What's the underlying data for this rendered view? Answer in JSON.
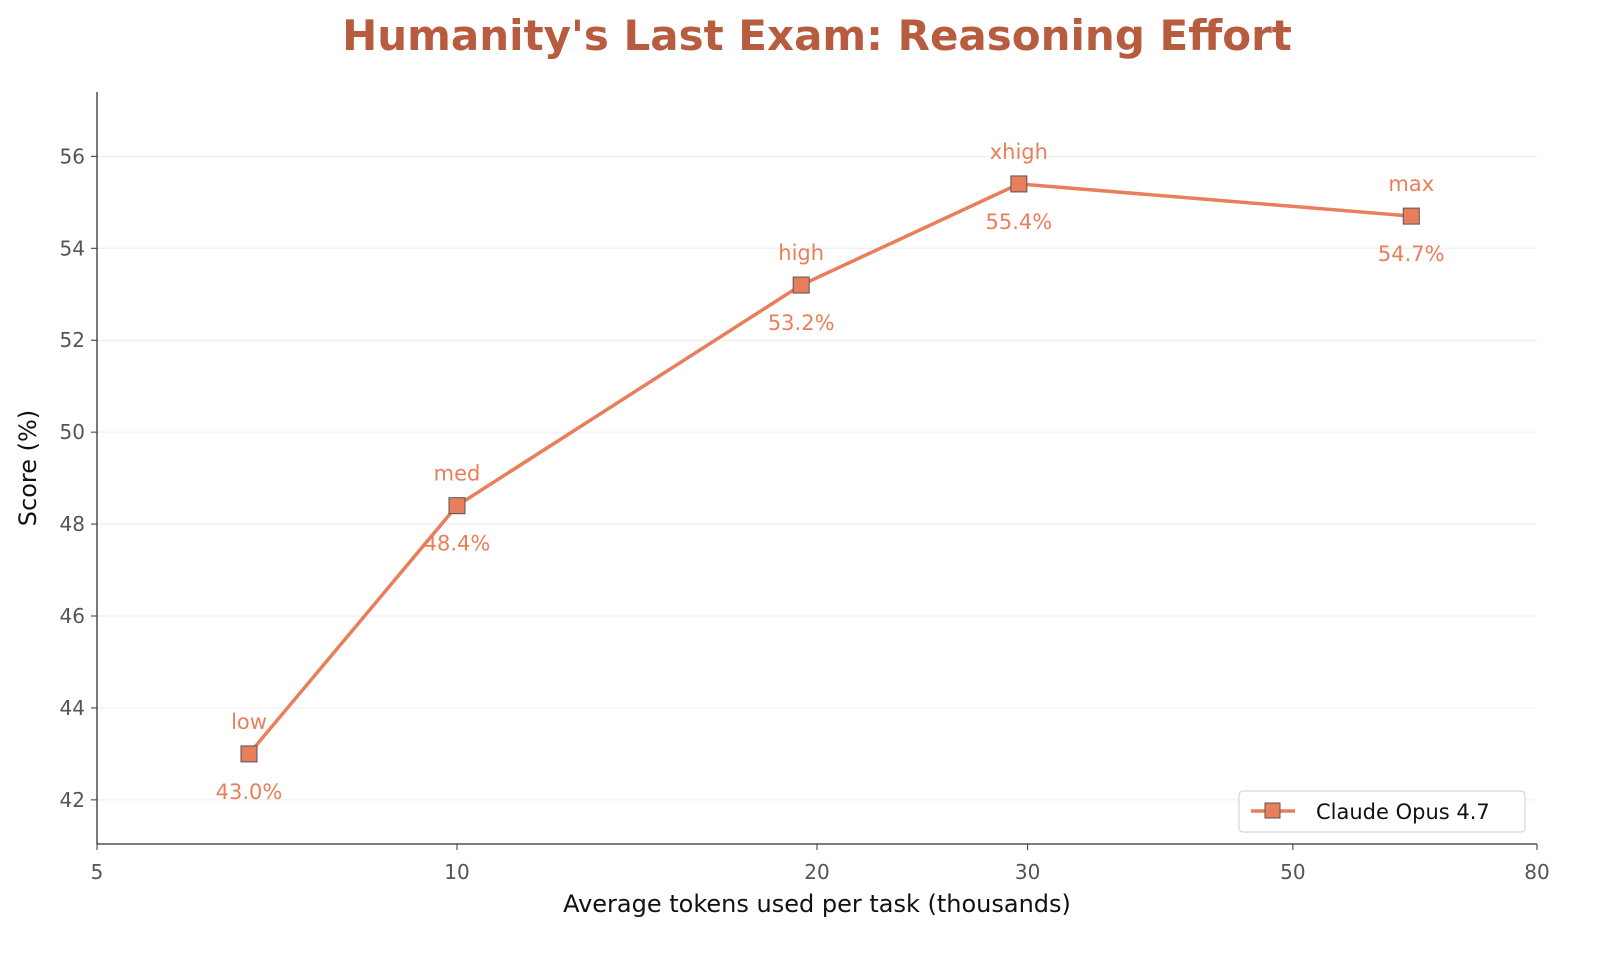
{
  "chart_data": {
    "type": "line",
    "title": "Humanity's Last Exam: Reasoning Effort",
    "xlabel": "Average tokens used per task (thousands)",
    "ylabel": "Score (%)",
    "xscale": "log",
    "xlim": [
      5,
      80
    ],
    "ylim": [
      41.04,
      57.4
    ],
    "xticks": [
      5,
      10,
      20,
      30,
      50,
      80
    ],
    "yticks": [
      42,
      44,
      46,
      48,
      50,
      52,
      54,
      56
    ],
    "grid": "horizontal",
    "legend_position": "bottom-right",
    "series": [
      {
        "name": "Claude Opus 4.7",
        "color": "#e97f5a",
        "marker": "square",
        "points": [
          {
            "x": 6.7,
            "y": 43.0,
            "label": "low",
            "value_label": "43.0%"
          },
          {
            "x": 10.0,
            "y": 48.4,
            "label": "med",
            "value_label": "48.4%"
          },
          {
            "x": 19.4,
            "y": 53.2,
            "label": "high",
            "value_label": "53.2%"
          },
          {
            "x": 29.5,
            "y": 55.4,
            "label": "xhigh",
            "value_label": "55.4%"
          },
          {
            "x": 62.8,
            "y": 54.7,
            "label": "max",
            "value_label": "54.7%"
          }
        ]
      }
    ]
  }
}
